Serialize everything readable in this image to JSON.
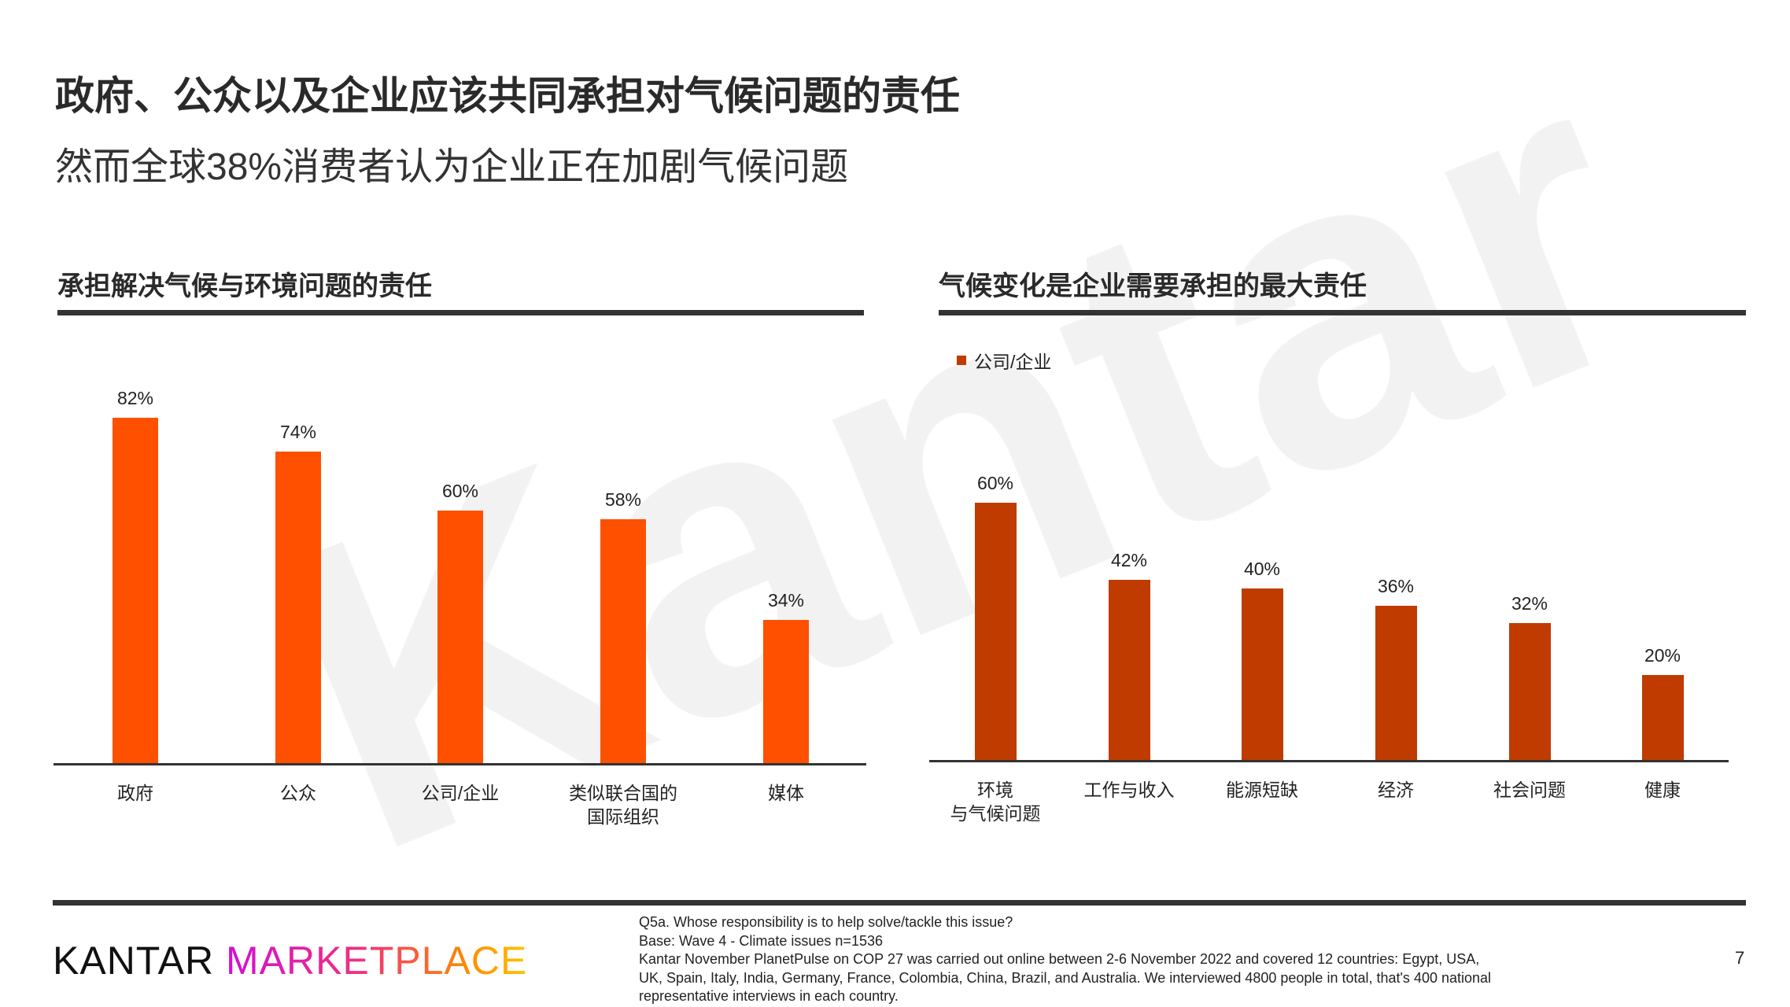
{
  "watermark": "Kantar",
  "title": "政府、公众以及企业应该共同承担对气候问题的责任",
  "subtitle": "然而全球38%消费者认为企业正在加剧气候问题",
  "colors": {
    "left_bar": "#ff5000",
    "right_bar": "#bf3b00"
  },
  "chart_data": [
    {
      "type": "bar",
      "title": "承担解决气候与环境问题的责任",
      "categories": [
        [
          "政府"
        ],
        [
          "公众"
        ],
        [
          "公司/企业"
        ],
        [
          "类似联合国的",
          "国际组织"
        ],
        [
          "媒体"
        ]
      ],
      "values": [
        82,
        74,
        60,
        58,
        34
      ],
      "labels": [
        "82%",
        "74%",
        "60%",
        "58%",
        "34%"
      ],
      "ylim": [
        0,
        100
      ],
      "grid": false
    },
    {
      "type": "bar",
      "title": "气候变化是企业需要承担的最大责任",
      "legend": [
        "公司/企业"
      ],
      "legend_position": "top-left",
      "categories": [
        [
          "环境",
          "与气候问题"
        ],
        [
          "工作与收入"
        ],
        [
          "能源短缺"
        ],
        [
          "经济"
        ],
        [
          "社会问题"
        ],
        [
          "健康"
        ]
      ],
      "values": [
        60,
        42,
        40,
        36,
        32,
        20
      ],
      "labels": [
        "60%",
        "42%",
        "40%",
        "36%",
        "32%",
        "20%"
      ],
      "ylim": [
        0,
        100
      ],
      "grid": false
    }
  ],
  "footer": {
    "logo_left": "KANTAR",
    "logo_right": "MARKETPLACE",
    "notes": [
      "Q5a. Whose responsibility is to help solve/tackle this issue?",
      "Base: Wave 4 - Climate issues n=1536",
      "Kantar November PlanetPulse on COP 27 was carried out online between 2-6 November 2022 and covered 12 countries: Egypt, USA,",
      "UK, Spain, Italy, India, Germany, France, Colombia, China, Brazil, and Australia. We interviewed 4800 people in total, that's 400 national",
      "representative interviews in each country."
    ],
    "page_number": "7"
  }
}
